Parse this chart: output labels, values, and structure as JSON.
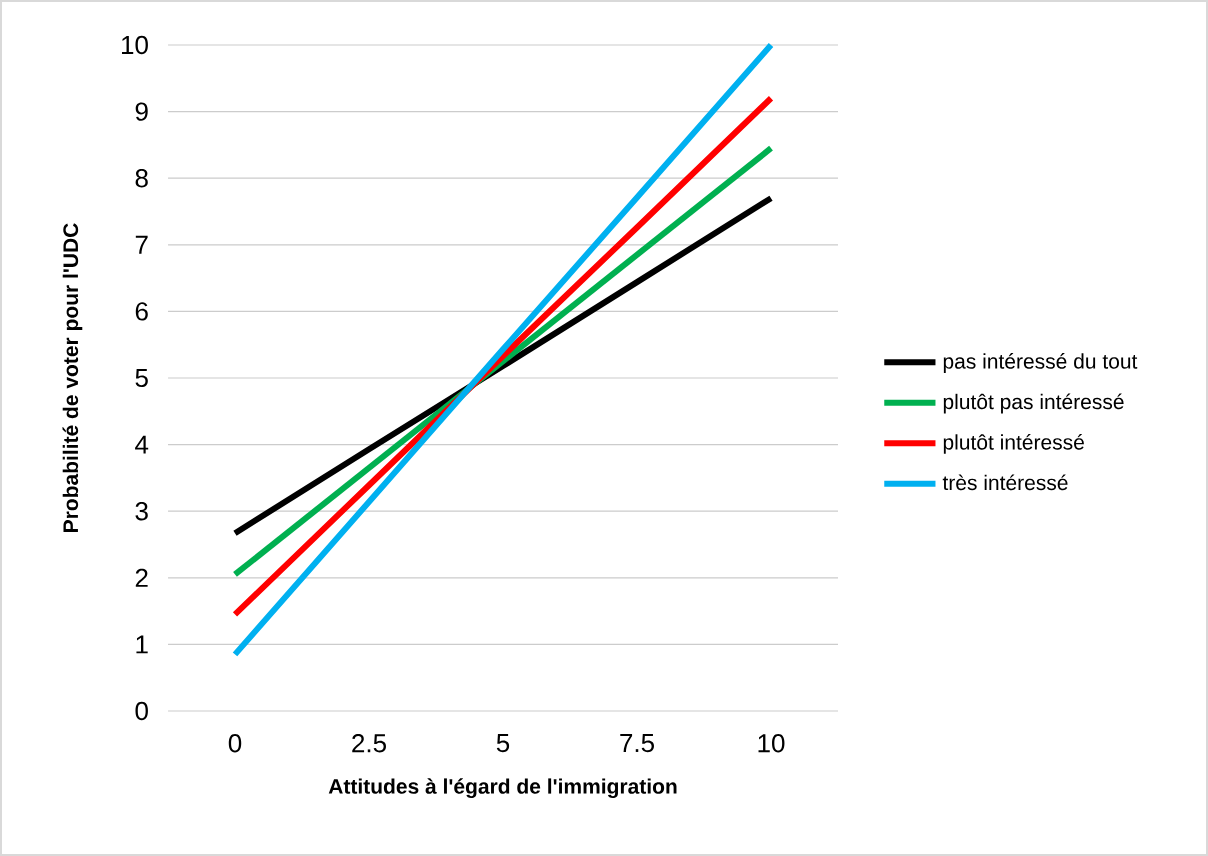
{
  "chart_data": {
    "type": "line",
    "xlabel": "Attitudes à l'égard de l'immigration",
    "ylabel": "Probabilité de voter pour l'UDC",
    "categories": [
      "0",
      "2.5",
      "5",
      "7.5",
      "10"
    ],
    "series": [
      {
        "name": "pas intéressé du tout",
        "color": "#000000",
        "values": [
          2.67,
          3.93,
          5.18,
          6.44,
          7.7
        ]
      },
      {
        "name": "plutôt pas intéressé",
        "color": "#00b050",
        "values": [
          2.05,
          3.65,
          5.25,
          6.85,
          8.45
        ]
      },
      {
        "name": "plutôt intéressé",
        "color": "#ff0000",
        "values": [
          1.45,
          3.39,
          5.33,
          7.26,
          9.2
        ]
      },
      {
        "name": "très intéressé",
        "color": "#00b0f0",
        "values": [
          0.85,
          3.14,
          5.43,
          7.71,
          10
        ]
      }
    ],
    "ylim": [
      0,
      10
    ],
    "yticks": [
      0,
      1,
      2,
      3,
      4,
      5,
      6,
      7,
      8,
      9,
      10
    ],
    "grid": "y",
    "legend": "right",
    "marker": "none",
    "line_style": "solid"
  }
}
